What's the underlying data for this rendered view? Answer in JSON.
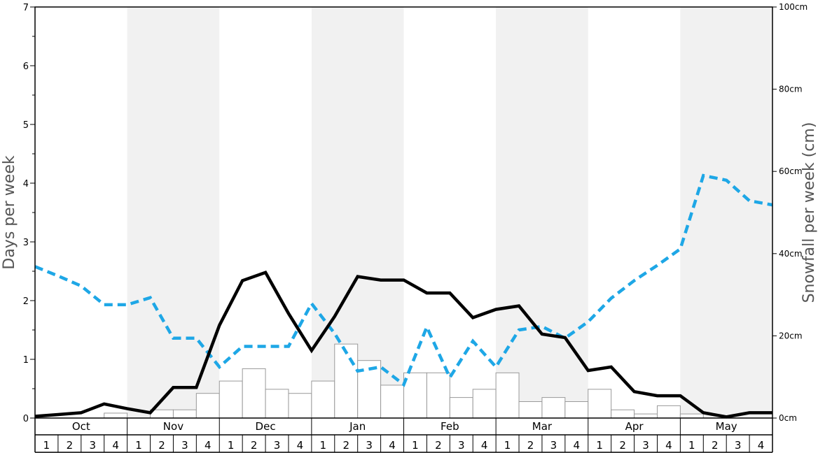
{
  "chart_data": {
    "type": "bar",
    "y_left": {
      "label": "Days per week",
      "range": [
        0,
        7
      ],
      "ticks": [
        "0",
        "1",
        "2",
        "3",
        "4",
        "5",
        "6",
        "7"
      ]
    },
    "y_right": {
      "label": "Snowfall per week (cm)",
      "range": [
        0,
        100
      ],
      "ticks": [
        "0cm",
        "20cm",
        "40cm",
        "60cm",
        "80cm",
        "100cm"
      ]
    },
    "months": [
      "Oct",
      "Nov",
      "Dec",
      "Jan",
      "Feb",
      "Mar",
      "Apr",
      "May"
    ],
    "weeks": [
      "1",
      "2",
      "3",
      "4"
    ],
    "snowfall_bars_cm": [
      0,
      0,
      0,
      1.2,
      0,
      2,
      2,
      6,
      9,
      12,
      7,
      6,
      9,
      18,
      14,
      8,
      11,
      11,
      5,
      7,
      11,
      4,
      5,
      4,
      7,
      2,
      1,
      3,
      1,
      0,
      0,
      0
    ],
    "solid_line_days": [
      0.03,
      0.06,
      0.09,
      0.24,
      0.16,
      0.09,
      0.52,
      0.52,
      1.58,
      2.34,
      2.48,
      1.78,
      1.15,
      1.73,
      2.41,
      2.35,
      2.35,
      2.13,
      2.13,
      1.71,
      1.85,
      1.91,
      1.43,
      1.37,
      0.81,
      0.87,
      0.45,
      0.38,
      0.38,
      0.09,
      0.02,
      0.09,
      0.09
    ],
    "dashed_line_days": [
      2.58,
      2.42,
      2.25,
      1.93,
      1.93,
      2.05,
      1.36,
      1.36,
      0.87,
      1.22,
      1.22,
      1.22,
      1.95,
      1.44,
      0.8,
      0.87,
      0.57,
      1.55,
      0.69,
      1.31,
      0.87,
      1.5,
      1.56,
      1.36,
      1.64,
      2.04,
      2.34,
      2.6,
      2.88,
      4.13,
      4.05,
      3.7,
      3.63
    ],
    "grid": false,
    "colors": {
      "solid_line": "#000000",
      "dashed_line": "#1ea7e6",
      "bar_fill": "#ffffff",
      "bar_stroke": "#999999",
      "shade": "#f1f1f1"
    }
  }
}
